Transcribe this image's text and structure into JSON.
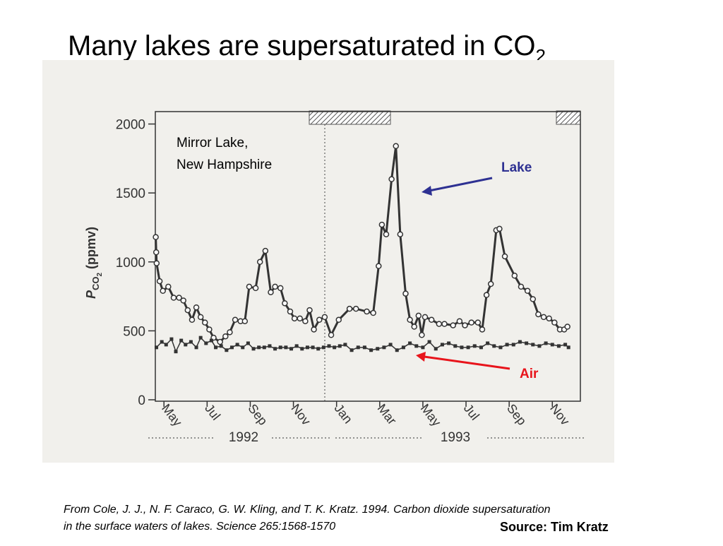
{
  "chart_data": {
    "type": "line",
    "title": "Many lakes are supersaturated in CO",
    "title_subscript": "2",
    "y_label": {
      "symbol": "P",
      "subscript": "CO",
      "subscript2": "2",
      "unit": "(ppmv)"
    },
    "site_label": [
      "Mirror Lake,",
      "New Hampshire"
    ],
    "year_labels": [
      "1992",
      "1993"
    ],
    "xlim": [
      3.6,
      23.3
    ],
    "xticks": [
      {
        "value": 4,
        "label": "May"
      },
      {
        "value": 6,
        "label": "Jul"
      },
      {
        "value": 8,
        "label": "Sep"
      },
      {
        "value": 10,
        "label": "Nov"
      },
      {
        "value": 12,
        "label": "Jan"
      },
      {
        "value": 14,
        "label": "Mar"
      },
      {
        "value": 16,
        "label": "May"
      },
      {
        "value": 18,
        "label": "Jul"
      },
      {
        "value": 20,
        "label": "Sep"
      },
      {
        "value": 22,
        "label": "Nov"
      }
    ],
    "ylim": [
      0,
      2090
    ],
    "yticks": [
      0,
      500,
      1000,
      1500,
      2000
    ],
    "series": [
      {
        "name": "Lake",
        "color": "#333333",
        "label_color": "#2e3192",
        "marker": "circle",
        "x": [
          3.62,
          3.64,
          3.66,
          3.8,
          3.95,
          4.2,
          4.45,
          4.7,
          4.9,
          5.1,
          5.3,
          5.5,
          5.7,
          5.9,
          6.1,
          6.3,
          6.6,
          6.85,
          7.05,
          7.3,
          7.55,
          7.75,
          7.95,
          8.25,
          8.45,
          8.7,
          8.95,
          9.15,
          9.4,
          9.6,
          9.85,
          10.05,
          10.3,
          10.55,
          10.75,
          10.95,
          11.2,
          11.45,
          11.75,
          12.1,
          12.6,
          12.9,
          13.4,
          13.7,
          13.95,
          14.1,
          14.3,
          14.55,
          14.75,
          14.95,
          15.2,
          15.4,
          15.6,
          15.8,
          15.95,
          16.1,
          16.4,
          16.75,
          17.0,
          17.4,
          17.7,
          17.95,
          18.25,
          18.55,
          18.75,
          18.95,
          19.15,
          19.4,
          19.55,
          19.8,
          20.25,
          20.55,
          20.85,
          21.1,
          21.35,
          21.6,
          21.85,
          22.1,
          22.35,
          22.55,
          22.7
        ],
        "values": [
          1180,
          1070,
          990,
          860,
          790,
          820,
          740,
          740,
          720,
          650,
          580,
          670,
          600,
          560,
          510,
          450,
          420,
          460,
          490,
          580,
          570,
          570,
          820,
          810,
          1000,
          1080,
          780,
          820,
          810,
          700,
          640,
          590,
          590,
          570,
          650,
          510,
          580,
          600,
          470,
          580,
          660,
          660,
          640,
          630,
          970,
          1270,
          1200,
          1600,
          1840,
          1200,
          770,
          580,
          530,
          610,
          470,
          600,
          580,
          550,
          550,
          540,
          570,
          540,
          560,
          560,
          510,
          760,
          840,
          1230,
          1240,
          1040,
          900,
          820,
          790,
          730,
          620,
          600,
          590,
          560,
          510,
          510,
          530
        ]
      },
      {
        "name": "Air",
        "color": "#333333",
        "label_color": "#e8141b",
        "marker": "square",
        "x": [
          3.65,
          3.9,
          4.1,
          4.35,
          4.55,
          4.8,
          5.0,
          5.25,
          5.5,
          5.7,
          5.95,
          6.2,
          6.4,
          6.65,
          6.9,
          7.15,
          7.4,
          7.65,
          7.9,
          8.15,
          8.4,
          8.65,
          8.9,
          9.15,
          9.4,
          9.65,
          9.9,
          10.15,
          10.4,
          10.65,
          10.9,
          11.15,
          11.4,
          11.65,
          11.9,
          12.15,
          12.4,
          12.7,
          13.0,
          13.3,
          13.6,
          13.9,
          14.2,
          14.5,
          14.8,
          15.1,
          15.4,
          15.7,
          16.0,
          16.3,
          16.6,
          16.9,
          17.2,
          17.5,
          17.8,
          18.1,
          18.4,
          18.7,
          19.0,
          19.3,
          19.6,
          19.9,
          20.2,
          20.5,
          20.8,
          21.1,
          21.4,
          21.7,
          22.0,
          22.3,
          22.6,
          22.75
        ],
        "values": [
          380,
          420,
          400,
          440,
          350,
          430,
          400,
          420,
          380,
          450,
          410,
          430,
          380,
          390,
          360,
          380,
          400,
          380,
          410,
          370,
          380,
          380,
          390,
          370,
          380,
          380,
          370,
          390,
          370,
          380,
          380,
          370,
          380,
          390,
          380,
          390,
          400,
          360,
          380,
          380,
          360,
          370,
          380,
          400,
          360,
          380,
          410,
          390,
          380,
          420,
          370,
          400,
          410,
          390,
          380,
          380,
          390,
          380,
          410,
          390,
          380,
          400,
          400,
          420,
          410,
          400,
          390,
          410,
          400,
          390,
          400,
          380
        ]
      }
    ],
    "citation": [
      "From Cole, J. J., N. F. Caraco, G. W. Kling, and T. K. Kratz.  1994.  Carbon dioxide supersaturation",
      "in the surface waters of lakes.  Science 265:1568-1570"
    ],
    "source": "Source: Tim Kratz"
  }
}
